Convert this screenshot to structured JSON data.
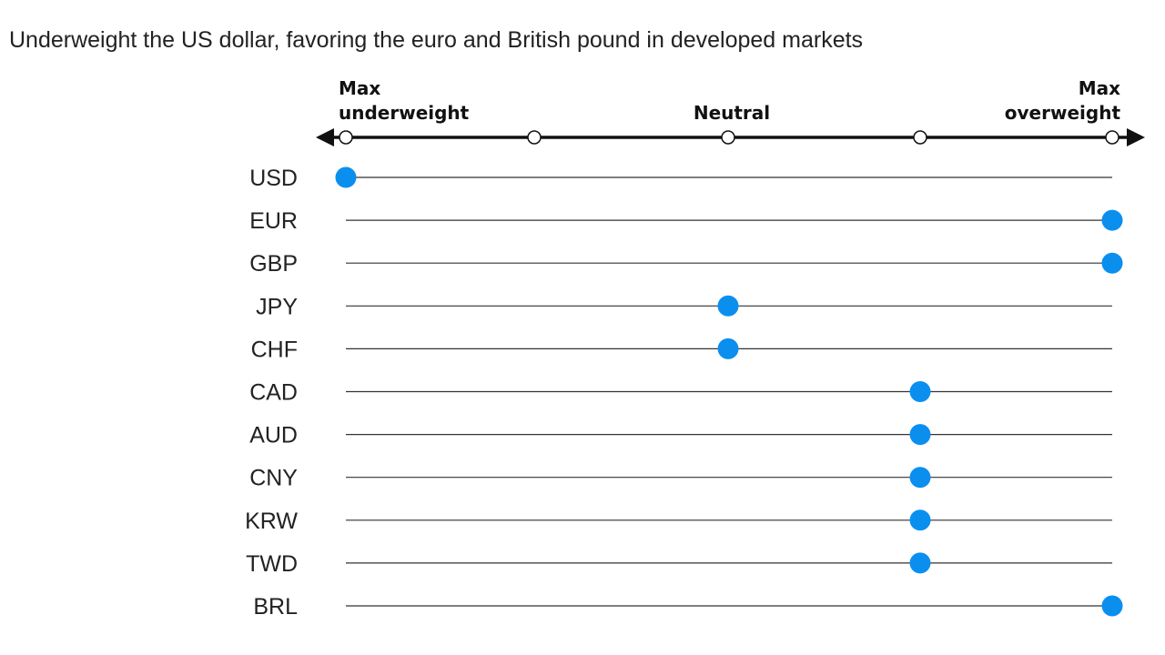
{
  "title": "Underweight the US dollar, favoring the euro and British pound in developed markets",
  "chart_data": {
    "type": "scatter",
    "title": "Underweight the US dollar, favoring the euro and British pound in developed markets",
    "scale_labels": {
      "left": [
        "Max",
        "underweight"
      ],
      "center": [
        "Neutral"
      ],
      "right": [
        "Max",
        "overweight"
      ]
    },
    "scale_points": 5,
    "categories": [
      "USD",
      "EUR",
      "GBP",
      "JPY",
      "CHF",
      "CAD",
      "AUD",
      "CNY",
      "KRW",
      "TWD",
      "BRL"
    ],
    "values": [
      1,
      5,
      5,
      3,
      3,
      4,
      4,
      4,
      4,
      4,
      5
    ],
    "xlim": [
      1,
      5
    ],
    "grid": false,
    "legend": "none",
    "colors": {
      "dot": "#0a8fef",
      "axis": "#111111",
      "row_line": "#333333",
      "text": "#222222"
    }
  }
}
